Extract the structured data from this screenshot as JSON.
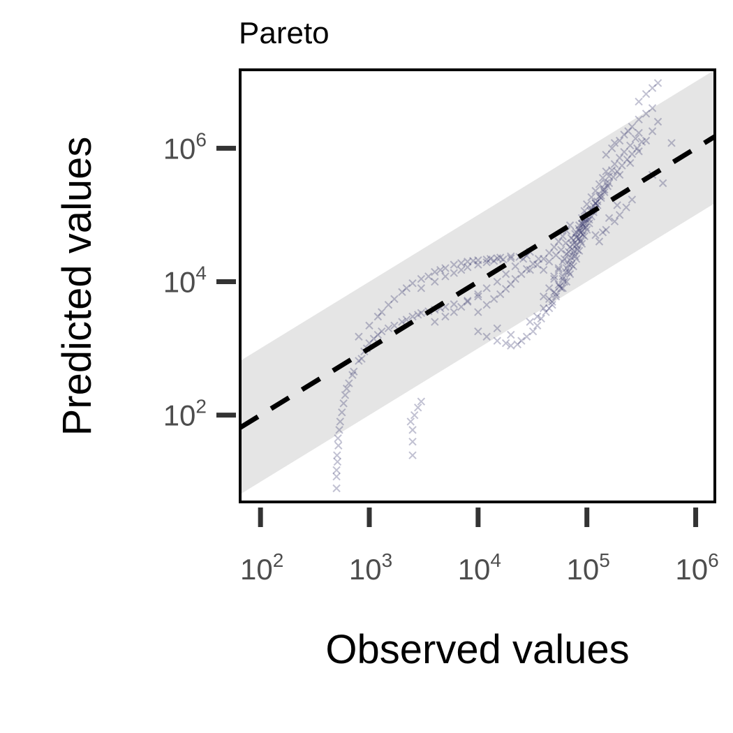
{
  "chart_data": {
    "type": "scatter",
    "title": "Pareto",
    "xlabel": "Observed values",
    "ylabel": "Predicted values",
    "x_scale": "log10",
    "y_scale": "log10",
    "xlim": [
      65,
      1500000
    ],
    "ylim": [
      5,
      15000000
    ],
    "x_ticks": [
      {
        "value": 100,
        "base": "10",
        "exp": "2"
      },
      {
        "value": 1000,
        "base": "10",
        "exp": "3"
      },
      {
        "value": 10000,
        "base": "10",
        "exp": "4"
      },
      {
        "value": 100000,
        "base": "10",
        "exp": "5"
      },
      {
        "value": 1000000,
        "base": "10",
        "exp": "6"
      }
    ],
    "y_ticks": [
      {
        "value": 100,
        "base": "10",
        "exp": "2"
      },
      {
        "value": 10000,
        "base": "10",
        "exp": "4"
      },
      {
        "value": 1000000,
        "base": "10",
        "exp": "6"
      }
    ],
    "reference_line": {
      "style": "dashed",
      "color": "#000000",
      "description": "y = x"
    },
    "prediction_band": {
      "color": "#e5e5e5",
      "factor_log10": 1.0
    },
    "point_marker": "x",
    "point_color": "#1f1f5e",
    "grid": false,
    "points": [
      [
        500,
        8
      ],
      [
        500,
        12
      ],
      [
        510,
        20
      ],
      [
        520,
        35
      ],
      [
        530,
        60
      ],
      [
        560,
        110
      ],
      [
        600,
        200
      ],
      [
        650,
        300
      ],
      [
        720,
        450
      ],
      [
        800,
        650
      ],
      [
        900,
        900
      ],
      [
        1000,
        1200
      ],
      [
        1200,
        1600
      ],
      [
        1500,
        2000
      ],
      [
        2000,
        2500
      ],
      [
        2500,
        3000
      ],
      [
        3000,
        3400
      ],
      [
        4000,
        3800
      ],
      [
        5000,
        4200
      ],
      [
        6000,
        4600
      ],
      [
        8000,
        5200
      ],
      [
        10000,
        6000
      ],
      [
        500,
        15
      ],
      [
        505,
        25
      ],
      [
        515,
        45
      ],
      [
        540,
        80
      ],
      [
        580,
        150
      ],
      [
        620,
        250
      ],
      [
        700,
        400
      ],
      [
        850,
        700
      ],
      [
        950,
        1000
      ],
      [
        1100,
        1400
      ],
      [
        1300,
        1800
      ],
      [
        1700,
        2200
      ],
      [
        2200,
        2700
      ],
      [
        2800,
        3200
      ],
      [
        3500,
        3600
      ],
      [
        4500,
        4000
      ],
      [
        800,
        1500
      ],
      [
        1000,
        2200
      ],
      [
        1300,
        3500
      ],
      [
        1700,
        5500
      ],
      [
        2200,
        8000
      ],
      [
        3000,
        11000
      ],
      [
        4000,
        14000
      ],
      [
        5000,
        16000
      ],
      [
        6000,
        18000
      ],
      [
        8000,
        20000
      ],
      [
        10000,
        21000
      ],
      [
        13000,
        22000
      ],
      [
        16000,
        23000
      ],
      [
        20000,
        24000
      ],
      [
        1200,
        3000
      ],
      [
        1500,
        4500
      ],
      [
        2000,
        7000
      ],
      [
        2500,
        9500
      ],
      [
        3500,
        12000
      ],
      [
        4500,
        15000
      ],
      [
        7000,
        19000
      ],
      [
        9000,
        20500
      ],
      [
        12000,
        21500
      ],
      [
        15000,
        22500
      ],
      [
        4000,
        2500
      ],
      [
        5000,
        3000
      ],
      [
        6000,
        3500
      ],
      [
        7000,
        4200
      ],
      [
        8000,
        5000
      ],
      [
        10000,
        6500
      ],
      [
        12000,
        8000
      ],
      [
        15000,
        10000
      ],
      [
        18000,
        13000
      ],
      [
        22000,
        17000
      ],
      [
        26000,
        22000
      ],
      [
        30000,
        28000
      ],
      [
        10000,
        1800
      ],
      [
        12000,
        1500
      ],
      [
        15000,
        1300
      ],
      [
        18000,
        1200
      ],
      [
        20000,
        1100
      ],
      [
        23000,
        1150
      ],
      [
        25000,
        1300
      ],
      [
        28000,
        1500
      ],
      [
        32000,
        1800
      ],
      [
        15000,
        2000
      ],
      [
        20000,
        1600
      ],
      [
        2500,
        60
      ],
      [
        2400,
        80
      ],
      [
        2600,
        100
      ],
      [
        2500,
        40
      ],
      [
        2500,
        25
      ],
      [
        2800,
        130
      ],
      [
        3000,
        160
      ],
      [
        30000,
        2500
      ],
      [
        35000,
        3000
      ],
      [
        40000,
        4000
      ],
      [
        45000,
        5500
      ],
      [
        50000,
        7000
      ],
      [
        55000,
        9000
      ],
      [
        60000,
        12000
      ],
      [
        65000,
        16000
      ],
      [
        70000,
        21000
      ],
      [
        75000,
        27000
      ],
      [
        80000,
        35000
      ],
      [
        85000,
        45000
      ],
      [
        90000,
        58000
      ],
      [
        95000,
        75000
      ],
      [
        100000,
        95000
      ],
      [
        110000,
        120000
      ],
      [
        120000,
        150000
      ],
      [
        130000,
        190000
      ],
      [
        140000,
        240000
      ],
      [
        150000,
        300000
      ],
      [
        160000,
        380000
      ],
      [
        170000,
        470000
      ],
      [
        180000,
        580000
      ],
      [
        200000,
        720000
      ],
      [
        220000,
        880000
      ],
      [
        250000,
        1100000
      ],
      [
        280000,
        1400000
      ],
      [
        300000,
        1700000
      ],
      [
        35000,
        2200
      ],
      [
        38000,
        2800
      ],
      [
        42000,
        3500
      ],
      [
        48000,
        4500
      ],
      [
        52000,
        6000
      ],
      [
        58000,
        8000
      ],
      [
        62000,
        10000
      ],
      [
        68000,
        14000
      ],
      [
        72000,
        18000
      ],
      [
        78000,
        24000
      ],
      [
        82000,
        30000
      ],
      [
        88000,
        40000
      ],
      [
        92000,
        50000
      ],
      [
        98000,
        65000
      ],
      [
        105000,
        85000
      ],
      [
        115000,
        110000
      ],
      [
        125000,
        140000
      ],
      [
        135000,
        180000
      ],
      [
        145000,
        220000
      ],
      [
        155000,
        270000
      ],
      [
        40000,
        6000
      ],
      [
        45000,
        8000
      ],
      [
        50000,
        11000
      ],
      [
        55000,
        15000
      ],
      [
        60000,
        20000
      ],
      [
        65000,
        26000
      ],
      [
        70000,
        33000
      ],
      [
        75000,
        42000
      ],
      [
        80000,
        55000
      ],
      [
        85000,
        70000
      ],
      [
        90000,
        90000
      ],
      [
        95000,
        115000
      ],
      [
        100000,
        145000
      ],
      [
        110000,
        185000
      ],
      [
        120000,
        230000
      ],
      [
        130000,
        290000
      ],
      [
        140000,
        360000
      ],
      [
        150000,
        450000
      ],
      [
        60000,
        8000
      ],
      [
        65000,
        10000
      ],
      [
        70000,
        13000
      ],
      [
        75000,
        17000
      ],
      [
        80000,
        22000
      ],
      [
        85000,
        29000
      ],
      [
        90000,
        37000
      ],
      [
        95000,
        48000
      ],
      [
        100000,
        60000
      ],
      [
        105000,
        75000
      ],
      [
        110000,
        95000
      ],
      [
        115000,
        120000
      ],
      [
        120000,
        150000
      ],
      [
        50000,
        12000
      ],
      [
        55000,
        16000
      ],
      [
        62000,
        22000
      ],
      [
        68000,
        28000
      ],
      [
        74000,
        36000
      ],
      [
        80000,
        46000
      ],
      [
        86000,
        58000
      ],
      [
        92000,
        72000
      ],
      [
        98000,
        90000
      ],
      [
        30000,
        15000
      ],
      [
        35000,
        18000
      ],
      [
        40000,
        22000
      ],
      [
        45000,
        27000
      ],
      [
        50000,
        33000
      ],
      [
        55000,
        40000
      ],
      [
        60000,
        48000
      ],
      [
        65000,
        58000
      ],
      [
        70000,
        70000
      ],
      [
        200000,
        400000
      ],
      [
        250000,
        600000
      ],
      [
        300000,
        900000
      ],
      [
        350000,
        1300000
      ],
      [
        400000,
        1800000
      ],
      [
        450000,
        2500000
      ],
      [
        180000,
        1200000
      ],
      [
        220000,
        1600000
      ],
      [
        260000,
        2100000
      ],
      [
        300000,
        2700000
      ],
      [
        350000,
        3300000
      ],
      [
        400000,
        4000000
      ],
      [
        150000,
        800000
      ],
      [
        170000,
        1000000
      ],
      [
        200000,
        1300000
      ],
      [
        240000,
        1800000
      ],
      [
        300000,
        5000000
      ],
      [
        350000,
        6500000
      ],
      [
        400000,
        8000000
      ],
      [
        450000,
        9500000
      ],
      [
        150000,
        60000
      ],
      [
        180000,
        80000
      ],
      [
        200000,
        100000
      ],
      [
        230000,
        130000
      ],
      [
        260000,
        170000
      ],
      [
        120000,
        50000
      ],
      [
        130000,
        40000
      ],
      [
        140000,
        55000
      ],
      [
        160000,
        90000
      ],
      [
        190000,
        140000
      ],
      [
        40000,
        15000
      ],
      [
        45000,
        20000
      ],
      [
        52000,
        25000
      ],
      [
        58000,
        30000
      ],
      [
        64000,
        38000
      ],
      [
        72000,
        45000
      ],
      [
        78000,
        52000
      ],
      [
        84000,
        62000
      ],
      [
        90000,
        74000
      ],
      [
        96000,
        88000
      ],
      [
        102000,
        100000
      ],
      [
        108000,
        115000
      ],
      [
        116000,
        135000
      ],
      [
        125000,
        160000
      ],
      [
        135000,
        195000
      ],
      [
        145000,
        240000
      ],
      [
        160000,
        300000
      ],
      [
        175000,
        370000
      ],
      [
        190000,
        450000
      ],
      [
        210000,
        550000
      ],
      [
        235000,
        680000
      ],
      [
        260000,
        820000
      ],
      [
        290000,
        1000000
      ],
      [
        320000,
        1250000
      ],
      [
        45000,
        4000
      ],
      [
        48000,
        5000
      ],
      [
        52000,
        6500
      ],
      [
        56000,
        8500
      ],
      [
        60000,
        11000
      ],
      [
        64000,
        14000
      ],
      [
        68000,
        18000
      ],
      [
        72000,
        23000
      ],
      [
        76000,
        29000
      ],
      [
        80000,
        36000
      ],
      [
        84000,
        44000
      ],
      [
        88000,
        54000
      ],
      [
        92000,
        66000
      ],
      [
        96000,
        80000
      ],
      [
        500000,
        300000
      ],
      [
        600000,
        1200000
      ],
      [
        400000,
        400000
      ],
      [
        10000,
        3500
      ],
      [
        12000,
        4500
      ],
      [
        14000,
        5500
      ],
      [
        16000,
        6500
      ],
      [
        18000,
        7800
      ],
      [
        20000,
        9200
      ],
      [
        22000,
        11000
      ],
      [
        25000,
        13000
      ],
      [
        28000,
        15500
      ],
      [
        32000,
        18500
      ],
      [
        36000,
        22000
      ],
      [
        3000,
        8000
      ],
      [
        4000,
        10000
      ],
      [
        5000,
        12000
      ],
      [
        6000,
        13500
      ],
      [
        7000,
        15000
      ],
      [
        8000,
        16500
      ],
      [
        10000,
        18000
      ],
      [
        12000,
        19500
      ],
      [
        14000,
        20500
      ],
      [
        17000,
        21500
      ],
      [
        20000,
        22500
      ],
      [
        24000,
        23500
      ],
      [
        28000,
        24500
      ]
    ]
  }
}
